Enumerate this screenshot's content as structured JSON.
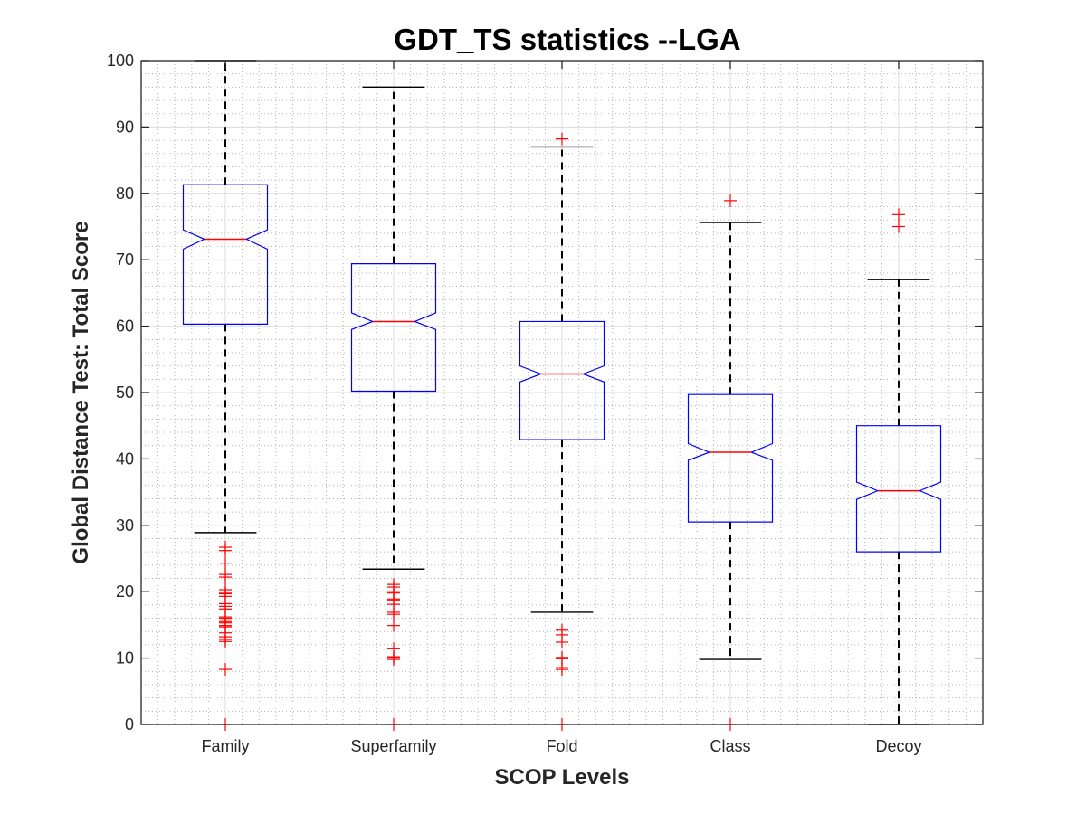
{
  "chart_data": {
    "type": "boxplot",
    "title": "GDT_TS statistics --LGA",
    "xlabel": "SCOP Levels",
    "ylabel": "Global Distance Test: Total Score",
    "ylim": [
      0,
      100
    ],
    "yticks": [
      0,
      10,
      20,
      30,
      40,
      50,
      60,
      70,
      80,
      90,
      100
    ],
    "grid": "major and minor",
    "notched": true,
    "colors": {
      "box": "#0000ff",
      "median": "#ff0000",
      "whisker": "#000000",
      "outlier": "#ff0000",
      "major_grid": "#dcdcdc",
      "minor_grid": "#b4b4b4",
      "axes": "#262626"
    },
    "categories": [
      "Family",
      "Superfamily",
      "Fold",
      "Class",
      "Decoy"
    ],
    "series": [
      {
        "name": "Family",
        "whisker_low": 28.9,
        "q1": 60.3,
        "notch_low": 71.6,
        "median": 73.1,
        "notch_high": 74.5,
        "q3": 81.3,
        "whisker_high": 100,
        "outliers": [
          26.7,
          26.2,
          24.3,
          22.6,
          22.2,
          20.3,
          19.9,
          19.7,
          19.3,
          18.2,
          17.8,
          17.4,
          16.2,
          16.0,
          15.5,
          15.3,
          14.9,
          14.7,
          13.8,
          13.2,
          12.8,
          12.5,
          8.3,
          0
        ]
      },
      {
        "name": "Superfamily",
        "whisker_low": 23.4,
        "q1": 50.2,
        "notch_low": 59.5,
        "median": 60.7,
        "notch_high": 62.0,
        "q3": 69.4,
        "whisker_high": 96,
        "outliers": [
          21.1,
          20.7,
          20.0,
          19.8,
          18.9,
          18.7,
          18.1,
          16.9,
          16.6,
          14.9,
          11.4,
          10.2,
          10.1,
          9.8,
          0
        ]
      },
      {
        "name": "Fold",
        "whisker_low": 16.9,
        "q1": 42.9,
        "notch_low": 51.6,
        "median": 52.8,
        "notch_high": 54.0,
        "q3": 60.7,
        "whisker_high": 87,
        "outliers": [
          88.2,
          14.2,
          13.5,
          12.4,
          10.1,
          9.9,
          8.6,
          8.3,
          0
        ]
      },
      {
        "name": "Class",
        "whisker_low": 9.8,
        "q1": 30.5,
        "notch_low": 39.8,
        "median": 41.0,
        "notch_high": 42.3,
        "q3": 49.7,
        "whisker_high": 75.6,
        "outliers": [
          78.9,
          0
        ]
      },
      {
        "name": "Decoy",
        "whisker_low": 0,
        "q1": 26.0,
        "notch_low": 33.9,
        "median": 35.2,
        "notch_high": 36.5,
        "q3": 45.0,
        "whisker_high": 67,
        "outliers": [
          76.8,
          75.0
        ]
      }
    ]
  }
}
